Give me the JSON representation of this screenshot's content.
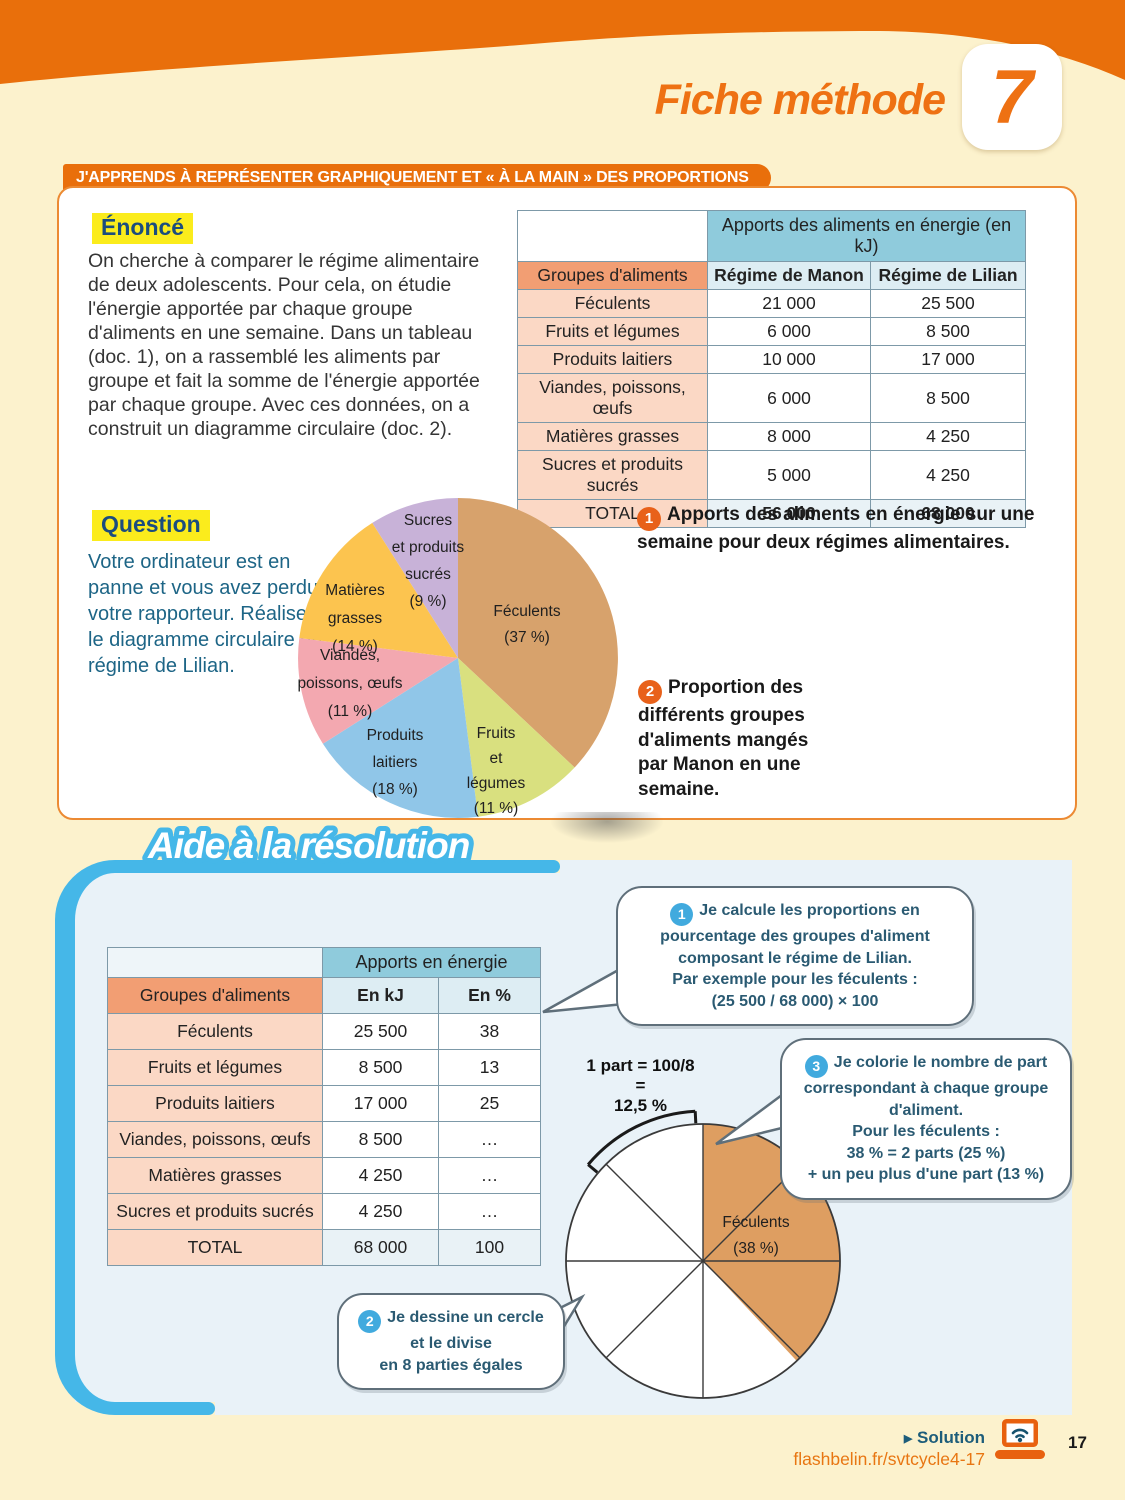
{
  "header": {
    "title": "Fiche méthode",
    "number": "7"
  },
  "banner": {
    "text": "J'APPRENDS À REPRÉSENTER GRAPHIQUEMENT ET « À LA MAIN » DES PROPORTIONS"
  },
  "enonce": {
    "label": "Énoncé",
    "text": "On cherche à comparer le régime alimentaire de deux adolescents. Pour cela, on étudie l'énergie apportée par chaque groupe d'aliments en une semaine. Dans un tableau (doc. 1), on a rassemblé les aliments par groupe et fait la somme de l'énergie apportée par chaque groupe. Avec ces données, on a construit un diagramme circulaire (doc. 2)."
  },
  "question": {
    "label": "Question",
    "text": "Votre ordinateur est en panne et vous avez perdu votre rapporteur. Réalisez le diagramme circulaire du régime de Lilian."
  },
  "doc1": {
    "badge": "1",
    "caption": "Apports des aliments en énergie sur une semaine pour deux régimes alimentaires.",
    "table": {
      "span_header": "Apports des aliments en énergie (en kJ)",
      "col_label": "Groupes d'aliments",
      "columns": [
        "Régime de Manon",
        "Régime de Lilian"
      ],
      "rows": [
        [
          "Féculents",
          "21 000",
          "25 500"
        ],
        [
          "Fruits et légumes",
          "6 000",
          "8 500"
        ],
        [
          "Produits laitiers",
          "10 000",
          "17 000"
        ],
        [
          "Viandes, poissons, œufs",
          "6 000",
          "8 500"
        ],
        [
          "Matières grasses",
          "8 000",
          "4 250"
        ],
        [
          "Sucres et produits sucrés",
          "5 000",
          "4 250"
        ]
      ],
      "total": [
        "TOTAL",
        "56 000",
        "68 000"
      ]
    }
  },
  "doc2": {
    "badge": "2",
    "caption": "Proportion des différents groupes d'aliments mangés par Manon en une semaine.",
    "pie_labels": [
      [
        "Féculents",
        "(37 %)"
      ],
      [
        "Fruits",
        "et",
        "légumes",
        "(11 %)"
      ],
      [
        "Produits",
        "laitiers",
        "(18 %)"
      ],
      [
        "Viandes,",
        "poissons, œufs",
        "(11 %)"
      ],
      [
        "Matières",
        "grasses",
        "(14 %)"
      ],
      [
        "Sucres",
        "et produits",
        "sucrés",
        "(9 %)"
      ]
    ]
  },
  "chart_data": [
    {
      "type": "pie",
      "title": "Proportion des différents groupes d'aliments mangés par Manon en une semaine",
      "categories": [
        "Féculents",
        "Fruits et légumes",
        "Produits laitiers",
        "Viandes, poissons, œufs",
        "Matières grasses",
        "Sucres et produits sucrés"
      ],
      "values": [
        37,
        11,
        18,
        11,
        14,
        9
      ],
      "unit": "%",
      "colors": [
        "#d7a26c",
        "#d9e07f",
        "#90c6e8",
        "#f3a8b0",
        "#fcc44f",
        "#c8b2d8"
      ],
      "start_angle_deg": 0,
      "direction": "clockwise"
    },
    {
      "type": "pie",
      "title": "Cercle divisé en 8 parties égales — régime de Lilian (en cours)",
      "categories": [
        "Féculents",
        "non colorié"
      ],
      "values": [
        38,
        62
      ],
      "unit": "%",
      "colors": [
        "#de9e61",
        "#ffffff"
      ],
      "note": "1 part = 100/8 = 12,5 %"
    }
  ],
  "aide": {
    "title": "Aide à la résolution",
    "table": {
      "span_header": "Apports en énergie",
      "col_label": "Groupes d'aliments",
      "columns": [
        "En kJ",
        "En %"
      ],
      "rows": [
        [
          "Féculents",
          "25 500",
          "38"
        ],
        [
          "Fruits et légumes",
          "8 500",
          "13"
        ],
        [
          "Produits laitiers",
          "17 000",
          "25"
        ],
        [
          "Viandes, poissons, œufs",
          "8 500",
          "…"
        ],
        [
          "Matières grasses",
          "4 250",
          "…"
        ],
        [
          "Sucres et produits sucrés",
          "4 250",
          "…"
        ]
      ],
      "total": [
        "TOTAL",
        "68 000",
        "100"
      ]
    },
    "steps": [
      {
        "badge": "1",
        "lines": [
          "Je calcule les proportions en",
          "pourcentage des groupes d'aliment",
          "composant le régime de Lilian.",
          "Par exemple pour les féculents :",
          "(25 500 / 68 000) × 100"
        ]
      },
      {
        "badge": "2",
        "lines": [
          "Je dessine un cercle",
          "et le divise",
          "en 8 parties égales"
        ]
      },
      {
        "badge": "3",
        "lines": [
          "Je colorie le nombre de part",
          "correspondant à chaque groupe",
          "d'aliment.",
          "Pour les féculents :",
          "38 % = 2 parts (25 %)",
          "+ un peu plus d'une part (13 %)"
        ]
      }
    ],
    "circle": {
      "part_label": [
        "1 part = 100/8",
        "=",
        "12,5 %"
      ],
      "sector_label": [
        "Féculents",
        "(38 %)"
      ]
    }
  },
  "footer": {
    "solution": "Solution",
    "url": "flashbelin.fr/svtcycle4-17",
    "page": "17"
  },
  "colors": {
    "brand_orange": "#e96f0b",
    "badge_orange": "#e8611a",
    "panel_blue": "#45b7e8",
    "bubble_badge_blue": "#41aade",
    "highlight_yellow": "#fbec1c",
    "table_head_blue": "#8fcbdc",
    "table_salmon": "#f29e73"
  }
}
